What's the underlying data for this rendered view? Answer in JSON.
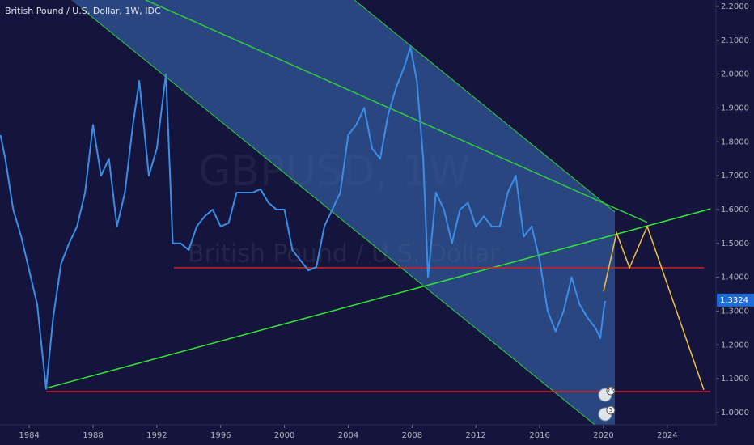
{
  "chart_data": {
    "type": "line",
    "title": "British Pound / U.S. Dollar, 1W, IDC",
    "watermark": [
      "GBPUSD, 1W",
      "British Pound / U.S. Dollar"
    ],
    "color": "#3a8ee6",
    "x": [
      1982.2,
      1982.5,
      1983.0,
      1983.5,
      1984.0,
      1984.5,
      1985.06,
      1985.5,
      1986.0,
      1986.5,
      1987.0,
      1987.5,
      1988.0,
      1988.5,
      1989.0,
      1989.5,
      1990.0,
      1990.5,
      1990.9,
      1991.5,
      1992.0,
      1992.57,
      1993.0,
      1993.5,
      1994.0,
      1994.5,
      1995.0,
      1995.5,
      1996.0,
      1996.5,
      1997.0,
      1997.5,
      1998.0,
      1998.5,
      1999.0,
      1999.5,
      2000.0,
      2000.5,
      2001.0,
      2001.5,
      2002.0,
      2002.5,
      2003.0,
      2003.5,
      2004.0,
      2004.5,
      2005.0,
      2005.5,
      2006.0,
      2006.5,
      2007.0,
      2007.5,
      2007.9,
      2008.3,
      2008.7,
      2009.0,
      2009.5,
      2010.0,
      2010.5,
      2011.0,
      2011.5,
      2012.0,
      2012.5,
      2013.0,
      2013.5,
      2014.0,
      2014.5,
      2015.0,
      2015.5,
      2016.0,
      2016.5,
      2017.0,
      2017.5,
      2018.0,
      2018.5,
      2019.0,
      2019.5,
      2019.8,
      2020.0,
      2020.1
    ],
    "values": [
      1.82,
      1.75,
      1.6,
      1.52,
      1.42,
      1.32,
      1.07,
      1.28,
      1.44,
      1.5,
      1.55,
      1.65,
      1.85,
      1.7,
      1.75,
      1.55,
      1.65,
      1.85,
      1.98,
      1.7,
      1.78,
      2.0,
      1.5,
      1.5,
      1.48,
      1.55,
      1.58,
      1.6,
      1.55,
      1.56,
      1.65,
      1.65,
      1.65,
      1.66,
      1.62,
      1.6,
      1.6,
      1.48,
      1.45,
      1.42,
      1.43,
      1.55,
      1.6,
      1.65,
      1.82,
      1.85,
      1.9,
      1.78,
      1.75,
      1.88,
      1.96,
      2.02,
      2.08,
      1.98,
      1.75,
      1.4,
      1.65,
      1.6,
      1.5,
      1.6,
      1.62,
      1.55,
      1.58,
      1.55,
      1.55,
      1.65,
      1.7,
      1.52,
      1.55,
      1.45,
      1.3,
      1.24,
      1.3,
      1.4,
      1.32,
      1.28,
      1.25,
      1.22,
      1.3,
      1.33
    ],
    "last_price": 1.3324,
    "event_counts": [
      15,
      5
    ],
    "xlim": [
      1982.17,
      2027.05
    ],
    "ylim": [
      0.964,
      2.219
    ],
    "xticks": [
      1984,
      1988,
      1992,
      1996,
      2000,
      2004,
      2008,
      2012,
      2016,
      2020,
      2024
    ],
    "yticks": [
      {
        "value": 1.0,
        "label": "1.0000"
      },
      {
        "value": 1.1,
        "label": "1.1000"
      },
      {
        "value": 1.2,
        "label": "1.2000"
      },
      {
        "value": 1.3,
        "label": "1.3000"
      },
      {
        "value": 1.4,
        "label": "1.4000"
      },
      {
        "value": 1.5,
        "label": "1.5000"
      },
      {
        "value": 1.6,
        "label": "1.6000"
      },
      {
        "value": 1.7,
        "label": "1.7000"
      },
      {
        "value": 1.8,
        "label": "1.8000"
      },
      {
        "value": 1.9,
        "label": "1.9000"
      },
      {
        "value": 2.0,
        "label": "2.0000"
      },
      {
        "value": 2.1,
        "label": "2.1000"
      },
      {
        "value": 2.2,
        "label": "2.2000"
      }
    ],
    "channel": {
      "color": "#3d6fb8",
      "upper": {
        "x": [
          2004.39,
          2020.71
        ],
        "y": [
          2.219,
          1.593
        ]
      },
      "lower": {
        "x": [
          1987.25,
          2020.71
        ],
        "y": [
          2.195,
          0.916
        ]
      }
    },
    "drawings": [
      {
        "color": "#2ecc40",
        "x": [
          1991.3,
          2022.74
        ],
        "y": [
          2.219,
          1.562
        ]
      },
      {
        "color": "#32e632",
        "x": [
          1985.06,
          2026.7
        ],
        "y": [
          1.072,
          1.602
        ]
      },
      {
        "color": "#d42020",
        "x": [
          1993.07,
          2026.31
        ],
        "y": [
          1.428,
          1.428
        ]
      },
      {
        "color": "#d42020",
        "x": [
          1985.06,
          2026.7
        ],
        "y": [
          1.062,
          1.062
        ]
      },
      {
        "color": "#f0c040",
        "x": [
          2020.0,
          2020.82,
          2021.63,
          2022.74,
          2026.29
        ],
        "y": [
          1.358,
          1.531,
          1.428,
          1.55,
          1.067
        ]
      }
    ]
  }
}
